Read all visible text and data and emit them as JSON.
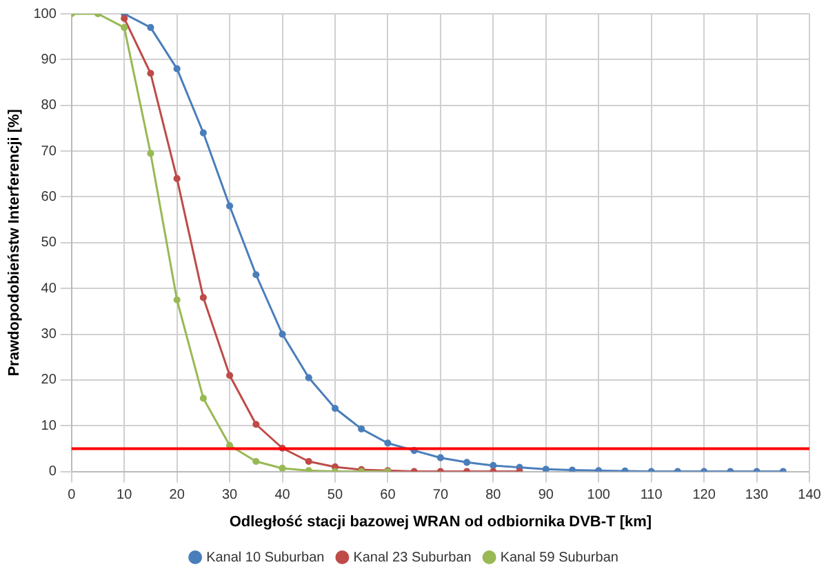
{
  "chart_data": {
    "type": "line",
    "xlabel": "Odległość stacji bazowej WRAN od odbiornika DVB-T [km]",
    "ylabel": "Prawdopodobieństw Interferencji [%]",
    "xlim": [
      0,
      140
    ],
    "xticks": [
      0,
      10,
      20,
      30,
      40,
      50,
      60,
      70,
      80,
      90,
      100,
      110,
      120,
      130,
      140
    ],
    "ylim": [
      0,
      100
    ],
    "yticks": [
      0,
      10,
      20,
      30,
      40,
      50,
      60,
      70,
      80,
      90,
      100
    ],
    "grid": true,
    "legend": "bottom",
    "marker": "circle",
    "line_style": "solid",
    "ref_lines": [
      {
        "axis": "y",
        "value": 5,
        "color": "#ff0000"
      }
    ],
    "series": [
      {
        "name": "Kanal 10 Suburban",
        "color": "#4a7ebb",
        "x": [
          10,
          15,
          20,
          25,
          30,
          35,
          40,
          45,
          50,
          55,
          60,
          65,
          70,
          75,
          80,
          85,
          90,
          95,
          100,
          105,
          110,
          115,
          120,
          125,
          130,
          135
        ],
        "values": [
          100,
          97,
          88,
          74,
          58,
          43,
          30,
          20.5,
          13.8,
          9.3,
          6.2,
          4.6,
          3,
          2,
          1.3,
          0.9,
          0.5,
          0.3,
          0.2,
          0.1,
          0,
          0,
          0,
          0,
          0,
          0
        ]
      },
      {
        "name": "Kanal 23 Suburban",
        "color": "#be4b48",
        "x": [
          10,
          15,
          20,
          25,
          30,
          35,
          40,
          45,
          50,
          55,
          60,
          65,
          70,
          75,
          80,
          85
        ],
        "values": [
          99,
          87,
          64,
          38,
          21,
          10.3,
          5.1,
          2.2,
          1,
          0.4,
          0.2,
          0,
          0,
          0,
          0,
          0
        ]
      },
      {
        "name": "Kanal 59 Suburban",
        "color": "#98b954",
        "x": [
          0,
          5,
          10,
          15,
          20,
          25,
          30,
          35,
          40,
          45,
          50,
          55,
          60
        ],
        "values": [
          100,
          100,
          97,
          69.5,
          37.5,
          16,
          5.7,
          2.2,
          0.7,
          0.2,
          0,
          0,
          0
        ]
      }
    ]
  }
}
